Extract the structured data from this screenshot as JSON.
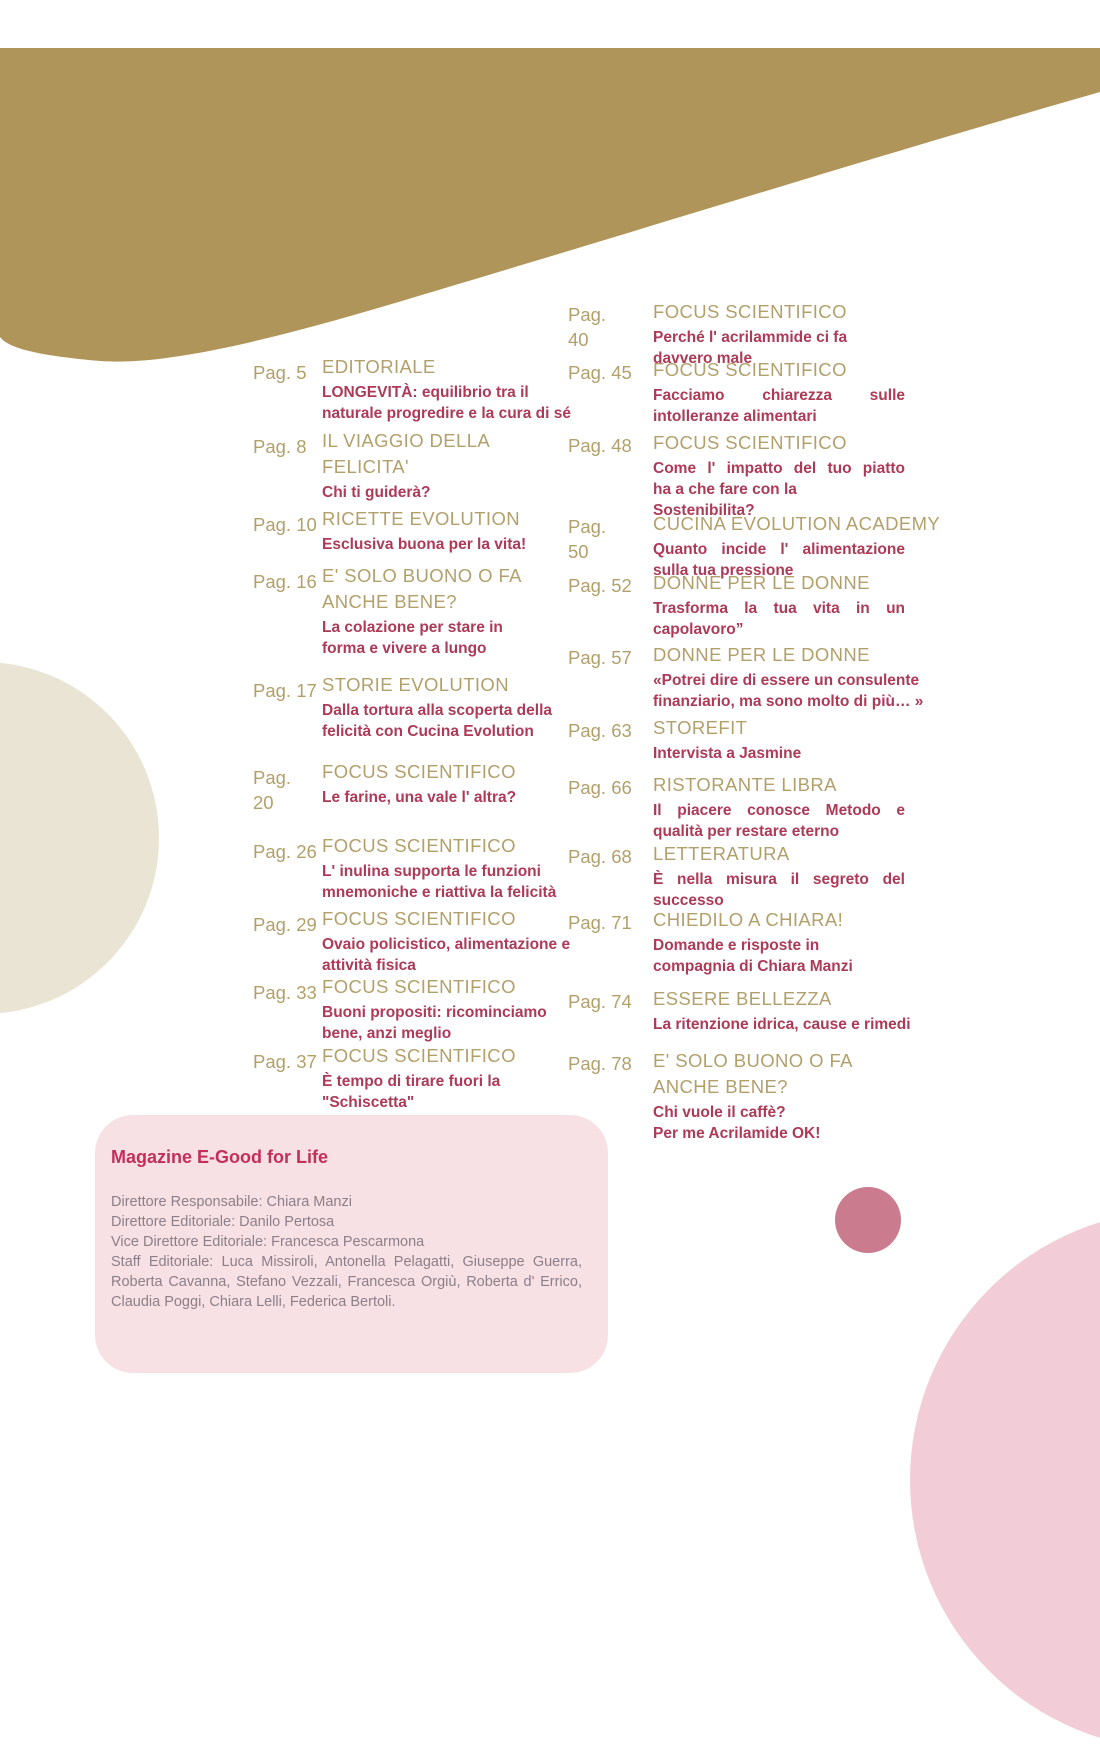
{
  "page": {
    "type": "magazine-table-of-contents"
  },
  "colors": {
    "gold_shape": "#b0955a",
    "gold_text": "#b2a06c",
    "maroon_text": "#ad3a57",
    "cream_circle": "#e9e4d3",
    "credits_box_bg": "#f8e1e5",
    "credits_title": "#c23059",
    "credits_text": "#8b7f8a",
    "small_circle": "#ca7b8e",
    "large_circle": "#f2cdd7"
  },
  "toc": {
    "left": [
      {
        "page": "Pag. 5",
        "title": "EDITORIALE",
        "subtitle": "LONGEVITÀ: equilibrio tra il\nnaturale progredire e la cura di sé"
      },
      {
        "page": "Pag. 8",
        "title": "IL VIAGGIO DELLA\nFELICITA'",
        "subtitle": "Chi ti guiderà?"
      },
      {
        "page": "Pag. 10",
        "title": "RICETTE EVOLUTION",
        "subtitle": "Esclusiva buona per la vita!"
      },
      {
        "page": "Pag. 16",
        "title": "E' SOLO BUONO O FA\nANCHE BENE?",
        "subtitle": "La colazione per stare in\nforma e vivere a lungo"
      },
      {
        "page": "Pag. 17",
        "title": "STORIE EVOLUTION",
        "subtitle": "Dalla tortura alla scoperta della\nfelicità con Cucina Evolution"
      },
      {
        "page": "Pag.\n20",
        "title": "FOCUS SCIENTIFICO",
        "subtitle": "Le farine, una vale l' altra?"
      },
      {
        "page": "Pag. 26",
        "title": "FOCUS SCIENTIFICO",
        "subtitle": "L' inulina supporta le funzioni\nmnemoniche e riattiva la felicità"
      },
      {
        "page": "Pag. 29",
        "title": "FOCUS SCIENTIFICO",
        "subtitle": "Ovaio policistico, alimentazione e\nattività fisica"
      },
      {
        "page": "Pag. 33",
        "title": "FOCUS SCIENTIFICO",
        "subtitle": "Buoni propositi: ricominciamo\nbene, anzi meglio"
      },
      {
        "page": "Pag. 37",
        "title": "FOCUS SCIENTIFICO",
        "subtitle": "È tempo di tirare fuori la\n\"Schiscetta\""
      }
    ],
    "right": [
      {
        "page": "Pag.\n40",
        "title": "FOCUS SCIENTIFICO",
        "subtitle": "Perché l' acrilammide ci fa\ndavvero male"
      },
      {
        "page": "Pag. 45",
        "title": "FOCUS SCIENTIFICO",
        "subtitle": "Facciamo chiarezza sulle\nintolleranze alimentari",
        "justify": true
      },
      {
        "page": "Pag. 48",
        "title": "FOCUS SCIENTIFICO",
        "subtitle": "Come l' impatto del tuo piatto\nha a che fare con la\nSostenibilita?",
        "justify": true
      },
      {
        "page": "Pag.\n50",
        "title": "CUCINA EVOLUTION ACADEMY",
        "subtitle": "Quanto incide l' alimentazione\nsulla tua pressione",
        "justify": true
      },
      {
        "page": "Pag. 52",
        "title": "DONNE PER LE DONNE",
        "subtitle": "Trasforma la tua vita in un\ncapolavoro”",
        "justify": true
      },
      {
        "page": "Pag. 57",
        "title": "DONNE PER LE DONNE",
        "subtitle": "«Potrei dire di essere un consulente\nfinanziario, ma sono molto di più… »"
      },
      {
        "page": "Pag. 63",
        "title": "STOREFIT",
        "subtitle": "Intervista a Jasmine"
      },
      {
        "page": "Pag. 66",
        "title": "RISTORANTE LIBRA",
        "subtitle": "Il piacere conosce Metodo e\nqualità per restare eterno",
        "justify": true
      },
      {
        "page": "Pag. 68",
        "title": "LETTERATURA",
        "subtitle": "È nella misura il segreto del\nsuccesso",
        "justify": true
      },
      {
        "page": "Pag. 71",
        "title": "CHIEDILO A CHIARA!",
        "subtitle": "Domande e risposte in\ncompagnia di Chiara Manzi"
      },
      {
        "page": "Pag. 74",
        "title": "ESSERE BELLEZZA",
        "subtitle": "La ritenzione idrica, cause e rimedi"
      },
      {
        "page": "Pag. 78",
        "title": "E' SOLO BUONO O FA\nANCHE BENE?",
        "subtitle": "Chi vuole il caffè?\nPer me Acrilamide OK!"
      }
    ]
  },
  "credits": {
    "title": "Magazine E-Good for Life",
    "lines": [
      "Direttore Responsabile: Chiara Manzi",
      "Direttore Editoriale: Danilo Pertosa",
      "Vice Direttore Editoriale: Francesca Pescarmona"
    ],
    "staff": "Staff Editoriale: Luca Missiroli,  Antonella Pelagatti, Giuseppe Guerra, Roberta Cavanna, Stefano Vezzali, Francesca Orgiù, Roberta d' Errico, Claudia Poggi, Chiara Lelli, Federica Bertoli."
  }
}
